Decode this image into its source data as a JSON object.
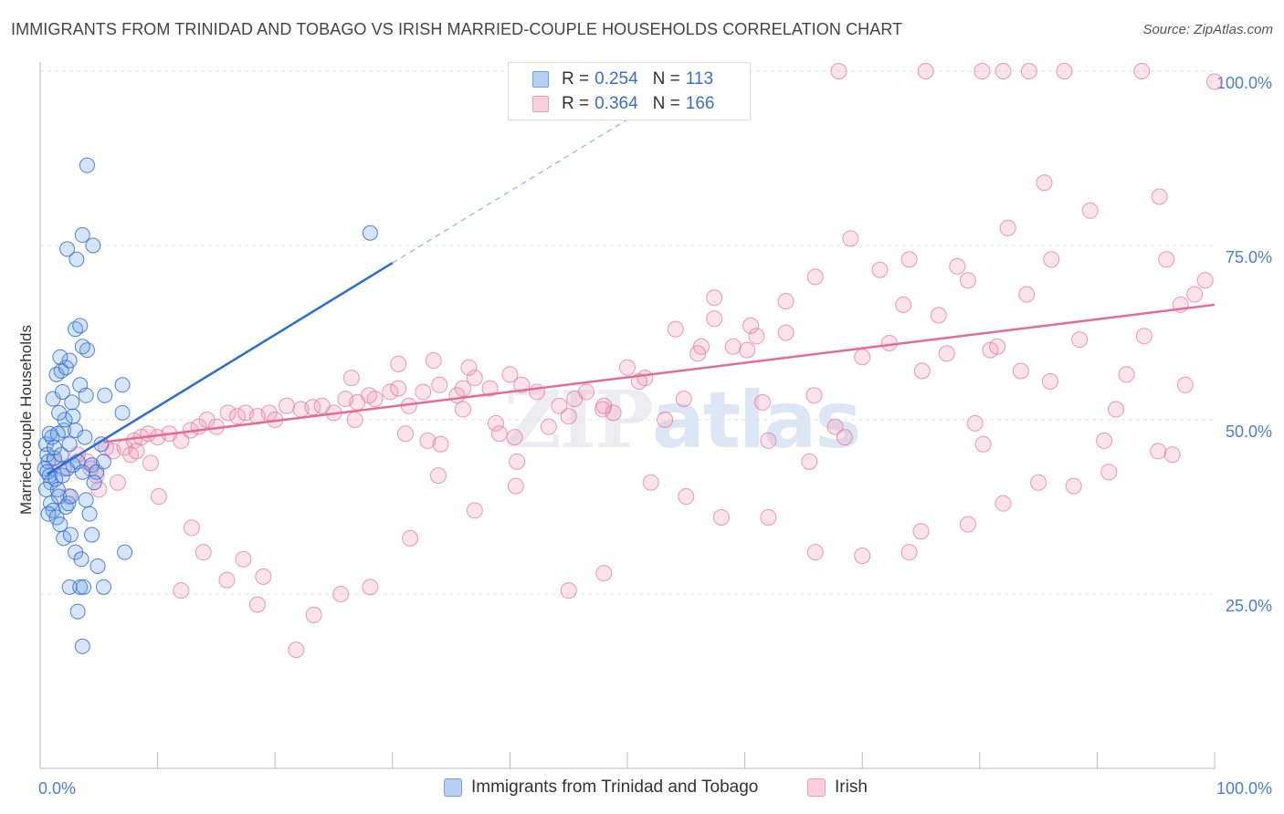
{
  "title": "IMMIGRANTS FROM TRINIDAD AND TOBAGO VS IRISH MARRIED-COUPLE HOUSEHOLDS CORRELATION CHART",
  "source": "Source: ZipAtlas.com",
  "watermark": {
    "zip": "ZIP",
    "atlas": "atlas"
  },
  "legend": {
    "r_label": "R =",
    "n_label": "N =",
    "series": [
      {
        "name": "Immigrants from Trinidad and Tobago",
        "r": "0.254",
        "n": "113",
        "color": "#6aa3e8"
      },
      {
        "name": "Irish",
        "r": "0.364",
        "n": "166",
        "color": "#f29ab8"
      }
    ]
  },
  "chart_data": {
    "type": "scatter",
    "title": "IMMIGRANTS FROM TRINIDAD AND TOBAGO VS IRISH MARRIED-COUPLE HOUSEHOLDS CORRELATION CHART",
    "xlabel": "",
    "ylabel": "Married-couple Households",
    "xlim": [
      0,
      100
    ],
    "ylim": [
      0,
      100
    ],
    "x_tick_labels": [
      "0.0%",
      "100.0%"
    ],
    "y_ticks": [
      25,
      50,
      75,
      100
    ],
    "y_tick_labels": [
      "25.0%",
      "50.0%",
      "75.0%",
      "100.0%"
    ],
    "grid": true,
    "legend_position": "top-center",
    "series": [
      {
        "name": "Immigrants from Trinidad and Tobago",
        "color": "#6aa3e8",
        "trend": {
          "x": [
            0.6,
            30
          ],
          "y": [
            42.2,
            72.5
          ],
          "extended_to": [
            51.6,
            94.7
          ]
        },
        "points": [
          [
            0.5,
            46.5
          ],
          [
            0.6,
            45
          ],
          [
            0.7,
            44
          ],
          [
            0.4,
            43
          ],
          [
            0.8,
            42
          ],
          [
            0.9,
            41
          ],
          [
            0.5,
            40
          ],
          [
            1.0,
            47.5
          ],
          [
            1.2,
            44.5
          ],
          [
            0.6,
            42.5
          ],
          [
            0.9,
            38
          ],
          [
            1.1,
            37
          ],
          [
            0.7,
            36.5
          ],
          [
            1.3,
            41.5
          ],
          [
            1.5,
            40
          ],
          [
            1.6,
            39
          ],
          [
            1.2,
            46
          ],
          [
            1.8,
            45
          ],
          [
            0.8,
            48
          ],
          [
            2.0,
            48.5
          ],
          [
            1.4,
            36
          ],
          [
            1.7,
            35
          ],
          [
            2.2,
            37.5
          ],
          [
            2.4,
            38
          ],
          [
            2.6,
            39
          ],
          [
            1.9,
            42
          ],
          [
            2.3,
            43
          ],
          [
            2.8,
            43.5
          ],
          [
            3.2,
            44
          ],
          [
            3.6,
            42.5
          ],
          [
            4.4,
            43.5
          ],
          [
            4.8,
            42.5
          ],
          [
            5.4,
            44
          ],
          [
            2.5,
            46.5
          ],
          [
            3.0,
            48.5
          ],
          [
            2.1,
            50
          ],
          [
            1.6,
            51
          ],
          [
            2.7,
            52.5
          ],
          [
            1.1,
            53
          ],
          [
            1.9,
            54
          ],
          [
            3.4,
            55
          ],
          [
            1.4,
            56.5
          ],
          [
            1.8,
            57
          ],
          [
            2.2,
            57.5
          ],
          [
            2.5,
            58.5
          ],
          [
            1.7,
            59
          ],
          [
            4.0,
            60
          ],
          [
            3.6,
            60.5
          ],
          [
            3.0,
            63
          ],
          [
            3.4,
            63.5
          ],
          [
            2.3,
            74.5
          ],
          [
            3.1,
            73
          ],
          [
            3.6,
            76.5
          ],
          [
            4.5,
            75
          ],
          [
            4.0,
            86.5
          ],
          [
            28.1,
            76.8
          ],
          [
            5.5,
            53.5
          ],
          [
            7.0,
            55
          ],
          [
            7.0,
            51
          ],
          [
            5.2,
            46.5
          ],
          [
            3.8,
            47.5
          ],
          [
            2.0,
            33
          ],
          [
            2.6,
            33.5
          ],
          [
            3.0,
            31
          ],
          [
            3.5,
            30
          ],
          [
            4.4,
            33.5
          ],
          [
            2.5,
            26
          ],
          [
            3.4,
            26
          ],
          [
            3.7,
            26
          ],
          [
            5.4,
            26
          ],
          [
            4.9,
            29
          ],
          [
            7.2,
            31
          ],
          [
            3.2,
            22.5
          ],
          [
            3.6,
            17.5
          ],
          [
            4.2,
            36.5
          ],
          [
            3.9,
            38.5
          ],
          [
            4.6,
            41
          ],
          [
            1.5,
            48
          ],
          [
            2.8,
            50.5
          ],
          [
            3.9,
            53.5
          ]
        ]
      },
      {
        "name": "Irish",
        "color": "#f29ab8",
        "trend": {
          "x": [
            5.4,
            100
          ],
          "y": [
            46.8,
            66.5
          ]
        },
        "points": [
          [
            1.2,
            44
          ],
          [
            2.0,
            43
          ],
          [
            3.2,
            45
          ],
          [
            4.0,
            44
          ],
          [
            4.8,
            42
          ],
          [
            5.6,
            46
          ],
          [
            6.2,
            45.5
          ],
          [
            7.2,
            46
          ],
          [
            8.0,
            47
          ],
          [
            8.6,
            47.5
          ],
          [
            9.2,
            48
          ],
          [
            10,
            47.5
          ],
          [
            11,
            48
          ],
          [
            12,
            47
          ],
          [
            12.8,
            48.5
          ],
          [
            13.5,
            49
          ],
          [
            14.2,
            50
          ],
          [
            15,
            49
          ],
          [
            16,
            51
          ],
          [
            16.8,
            50.5
          ],
          [
            17.5,
            51
          ],
          [
            18.5,
            50.5
          ],
          [
            19.5,
            51
          ],
          [
            20,
            50
          ],
          [
            21,
            52
          ],
          [
            22.2,
            51.5
          ],
          [
            23.2,
            51.8
          ],
          [
            24,
            52
          ],
          [
            25,
            51
          ],
          [
            26,
            53
          ],
          [
            27,
            52.5
          ],
          [
            28,
            53.5
          ],
          [
            28.5,
            53
          ],
          [
            29.8,
            54
          ],
          [
            30.5,
            54.5
          ],
          [
            31.4,
            52
          ],
          [
            32.6,
            54
          ],
          [
            34,
            55
          ],
          [
            35.5,
            53.5
          ],
          [
            36,
            54.5
          ],
          [
            37,
            56
          ],
          [
            38.3,
            54.5
          ],
          [
            40,
            56.5
          ],
          [
            41,
            55
          ],
          [
            42.3,
            54
          ],
          [
            43.3,
            49
          ],
          [
            36.5,
            57.5
          ],
          [
            33.5,
            58.5
          ],
          [
            26.5,
            56
          ],
          [
            30.5,
            58
          ],
          [
            26.8,
            50
          ],
          [
            31.1,
            48
          ],
          [
            33,
            47
          ],
          [
            34.1,
            46.5
          ],
          [
            36,
            51.5
          ],
          [
            38.8,
            49.5
          ],
          [
            39.1,
            48
          ],
          [
            40.4,
            47.5
          ],
          [
            40.6,
            44
          ],
          [
            44.2,
            52
          ],
          [
            45.5,
            53
          ],
          [
            46.5,
            54
          ],
          [
            47.9,
            51.5
          ],
          [
            48.8,
            51
          ],
          [
            50,
            57.5
          ],
          [
            51.5,
            56
          ],
          [
            53.2,
            50
          ],
          [
            54.8,
            53
          ],
          [
            56.3,
            60.5
          ],
          [
            57.4,
            64.5
          ],
          [
            54.1,
            63
          ],
          [
            57.4,
            67.5
          ],
          [
            60.2,
            60
          ],
          [
            61.5,
            52.5
          ],
          [
            62,
            47
          ],
          [
            63.5,
            62.5
          ],
          [
            65.9,
            53.5
          ],
          [
            65.5,
            44
          ],
          [
            67.7,
            49
          ],
          [
            68.5,
            47.5
          ],
          [
            70,
            59
          ],
          [
            72.3,
            61
          ],
          [
            73.5,
            66.5
          ],
          [
            75.1,
            57
          ],
          [
            77.2,
            59.5
          ],
          [
            78.1,
            72
          ],
          [
            79.6,
            49.5
          ],
          [
            80.3,
            46.5
          ],
          [
            80.9,
            60
          ],
          [
            82.4,
            77.5
          ],
          [
            84,
            68
          ],
          [
            85.5,
            84
          ],
          [
            86.1,
            73
          ],
          [
            89.4,
            80
          ],
          [
            90.6,
            47
          ],
          [
            91.6,
            51.5
          ],
          [
            95.3,
            82
          ],
          [
            95.9,
            73
          ],
          [
            96.4,
            45
          ],
          [
            97.1,
            66.5
          ],
          [
            98.3,
            68
          ],
          [
            95.2,
            45.5
          ],
          [
            91,
            42.5
          ],
          [
            88,
            40.5
          ],
          [
            85,
            41
          ],
          [
            82,
            38
          ],
          [
            79,
            35
          ],
          [
            75,
            34
          ],
          [
            74,
            31
          ],
          [
            70,
            30.5
          ],
          [
            66,
            31
          ],
          [
            62,
            36
          ],
          [
            58,
            36
          ],
          [
            55,
            39
          ],
          [
            52,
            41
          ],
          [
            48,
            28
          ],
          [
            45,
            25.5
          ],
          [
            40.5,
            40.5
          ],
          [
            37,
            37
          ],
          [
            33.9,
            42
          ],
          [
            31.5,
            33
          ],
          [
            28.1,
            26
          ],
          [
            25.6,
            25
          ],
          [
            23.3,
            22
          ],
          [
            21.8,
            17
          ],
          [
            19,
            27.5
          ],
          [
            18.5,
            23.5
          ],
          [
            17.3,
            30
          ],
          [
            15.9,
            27
          ],
          [
            13.9,
            31
          ],
          [
            12.9,
            34.5
          ],
          [
            12,
            25.5
          ],
          [
            10.1,
            39
          ],
          [
            9.4,
            43.8
          ],
          [
            7.7,
            45
          ],
          [
            6.6,
            41
          ],
          [
            5,
            40
          ],
          [
            2.4,
            39
          ],
          [
            4.3,
            43
          ],
          [
            8.2,
            45.5
          ],
          [
            68,
            100
          ],
          [
            75.4,
            100
          ],
          [
            80.2,
            100
          ],
          [
            82,
            100
          ],
          [
            84.2,
            100
          ],
          [
            87.2,
            100
          ],
          [
            93.8,
            100
          ],
          [
            100,
            98.5
          ],
          [
            59,
            60.5
          ],
          [
            61,
            62
          ],
          [
            45,
            50.5
          ],
          [
            48,
            52
          ],
          [
            51,
            55.5
          ],
          [
            56,
            59.5
          ],
          [
            60.5,
            63.5
          ],
          [
            63.5,
            67
          ],
          [
            66,
            70.5
          ],
          [
            69,
            76
          ],
          [
            71.5,
            71.5
          ],
          [
            74,
            73
          ],
          [
            76.5,
            65
          ],
          [
            79,
            70
          ],
          [
            81.5,
            60.5
          ],
          [
            83.5,
            57
          ],
          [
            86,
            55.5
          ],
          [
            88.5,
            61.5
          ],
          [
            92.5,
            56.5
          ],
          [
            94,
            62
          ],
          [
            97.5,
            55
          ],
          [
            99.2,
            70
          ]
        ]
      }
    ]
  }
}
